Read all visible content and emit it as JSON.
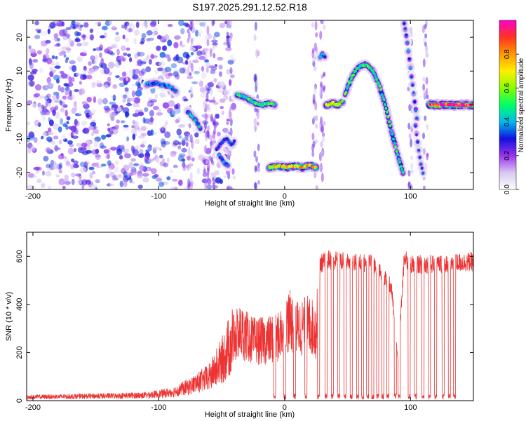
{
  "title": "S197.2025.291.12.52.R18",
  "chart_data": [
    {
      "type": "heatmap",
      "name": "spectrogram",
      "xlabel": "Height of straight line (km)",
      "ylabel": "Frequency (Hz)",
      "xlim": [
        -205,
        150
      ],
      "ylim": [
        -25,
        25
      ],
      "xticks": [
        -200,
        -100,
        0,
        100
      ],
      "yticks": [
        -20,
        -10,
        0,
        10,
        20
      ],
      "xtick_labels": [
        "-200",
        "-100",
        "0",
        "100"
      ],
      "ytick_labels": [
        "-20",
        "-10",
        "0",
        "10",
        "20"
      ],
      "noise_region": [
        -205,
        -40
      ],
      "tracks": [
        {
          "x": [
            -110,
            -103,
            -98,
            -92,
            -86
          ],
          "y": [
            6,
            6.5,
            6,
            5.5,
            4
          ],
          "amp": 0.35
        },
        {
          "x": [
            -77,
            -73,
            -70,
            -67
          ],
          "y": [
            -2,
            -3.5,
            -5,
            -7
          ],
          "amp": 0.4
        },
        {
          "x": [
            -54,
            -50,
            -46,
            -42,
            -40
          ],
          "y": [
            -13,
            -11,
            -10,
            -12,
            -11
          ],
          "amp": 0.3
        },
        {
          "x": [
            -52,
            -48,
            -45
          ],
          "y": [
            -15,
            -17,
            -18
          ],
          "amp": 0.35
        },
        {
          "x": [
            -38,
            -33,
            -28,
            -23,
            -18,
            -12,
            -8
          ],
          "y": [
            3,
            2.5,
            1.5,
            0.5,
            0,
            0.5,
            0
          ],
          "amp": 0.5
        },
        {
          "x": [
            -12,
            -5,
            2,
            8,
            14,
            20,
            25
          ],
          "y": [
            -18.5,
            -18,
            -18.5,
            -18,
            -18.5,
            -18,
            -18.5
          ],
          "amp": 0.75
        },
        {
          "x": [
            28,
            30,
            32
          ],
          "y": [
            14,
            15,
            14
          ],
          "amp": 0.35
        },
        {
          "x": [
            33,
            38,
            42,
            46
          ],
          "y": [
            0,
            0.5,
            0,
            1
          ],
          "amp": 0.7
        },
        {
          "x": [
            48,
            52,
            56,
            60,
            65,
            70,
            75,
            80,
            85,
            90,
            94
          ],
          "y": [
            3,
            7,
            10,
            11.5,
            12,
            10,
            6,
            0,
            -8,
            -15,
            -20
          ],
          "amp": 0.5
        },
        {
          "x": [
            95,
            97,
            99,
            101,
            103,
            105
          ],
          "y": [
            24,
            20,
            14,
            8,
            2,
            -4
          ],
          "amp": 0.35
        },
        {
          "x": [
            104,
            106,
            108,
            110
          ],
          "y": [
            -6,
            -12,
            -17,
            -20
          ],
          "amp": 0.3
        },
        {
          "x": [
            115,
            120,
            125,
            130,
            135,
            140,
            150
          ],
          "y": [
            0,
            0,
            0,
            0,
            0,
            0,
            0
          ],
          "amp": 0.95
        }
      ]
    },
    {
      "type": "line",
      "name": "snr",
      "xlabel": "Height of straight line (km)",
      "ylabel": "SNR (10 * v/v)",
      "xlim": [
        -205,
        150
      ],
      "ylim": [
        0,
        700
      ],
      "xticks": [
        -200,
        -100,
        0,
        100
      ],
      "yticks": [
        0,
        200,
        400,
        600
      ],
      "xtick_labels": [
        "-200",
        "-100",
        "0",
        "100"
      ],
      "ytick_labels": [
        "0",
        "200",
        "400",
        "600"
      ],
      "color": "#ee3333",
      "envelope": {
        "x": [
          -205,
          -150,
          -110,
          -90,
          -75,
          -60,
          -50,
          -40,
          -35,
          -25,
          -15,
          -5,
          0,
          5,
          10,
          20,
          25,
          28,
          35,
          50,
          70,
          85,
          90,
          95,
          100,
          120,
          150
        ],
        "y": [
          20,
          25,
          30,
          45,
          80,
          130,
          220,
          350,
          380,
          330,
          330,
          350,
          420,
          440,
          400,
          420,
          380,
          600,
          620,
          610,
          600,
          500,
          180,
          620,
          600,
          600,
          610
        ]
      },
      "dropouts": [
        -8,
        0,
        8,
        17,
        27,
        33,
        38,
        43,
        48,
        53,
        58,
        62,
        66,
        70,
        74,
        78,
        82,
        88,
        91,
        99,
        104,
        110,
        115,
        120,
        126,
        131,
        135
      ]
    }
  ],
  "colorbar": {
    "label": "Normalized spectral amplitude",
    "range": [
      0,
      1
    ],
    "ticks": [
      0,
      0.2,
      0.4,
      0.6,
      0.8
    ],
    "tick_labels": [
      "0.0",
      "0.2",
      "0.4",
      "0.6",
      "0.8"
    ],
    "stops": [
      "#ffffff",
      "#d8c8f0",
      "#9933ee",
      "#1111dd",
      "#00bbee",
      "#00ff66",
      "#88ff00",
      "#ffee00",
      "#ff9900",
      "#ff3322",
      "#ff00cc"
    ]
  }
}
